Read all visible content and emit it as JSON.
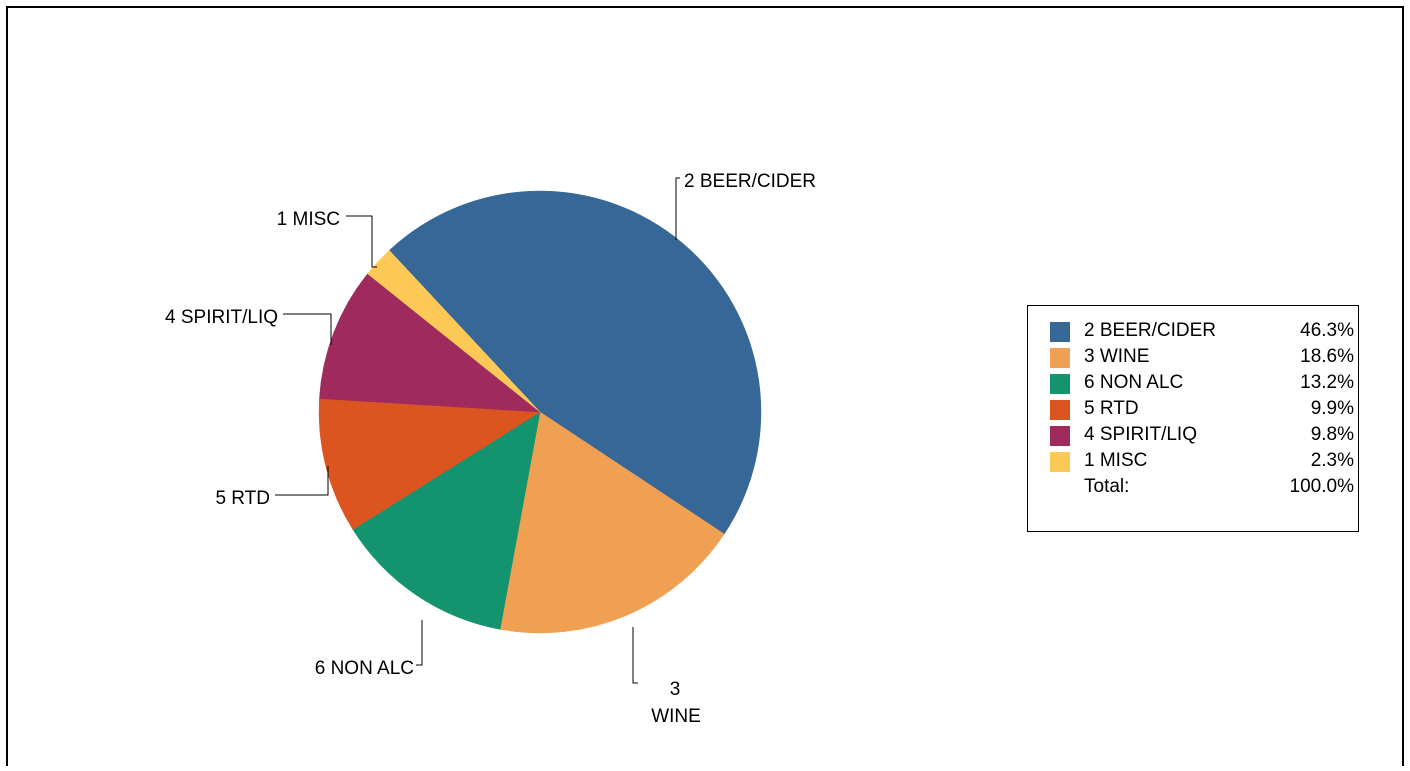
{
  "chart_data": {
    "type": "pie",
    "start_angle_deg": 227,
    "direction": "clockwise",
    "slices": [
      {
        "name": "2 BEER/CIDER",
        "value": 46.3,
        "percent_label": "46.3%",
        "color": "#366797",
        "outside_label": [
          "2 BEER/CIDER"
        ]
      },
      {
        "name": "3 WINE",
        "value": 18.6,
        "percent_label": "18.6%",
        "color": "#F0A052",
        "outside_label": [
          "3",
          "WINE"
        ]
      },
      {
        "name": "6 NON ALC",
        "value": 13.2,
        "percent_label": "13.2%",
        "color": "#13946E",
        "outside_label": [
          "6 NON ALC"
        ]
      },
      {
        "name": "5 RTD",
        "value": 9.9,
        "percent_label": "9.9%",
        "color": "#DC5420",
        "outside_label": [
          "5 RTD"
        ]
      },
      {
        "name": "4 SPIRIT/LIQ",
        "value": 9.8,
        "percent_label": "9.8%",
        "color": "#9E2A5E",
        "outside_label": [
          "4 SPIRIT/LIQ"
        ]
      },
      {
        "name": "1 MISC",
        "value": 2.3,
        "percent_label": "2.3%",
        "color": "#FDC956",
        "outside_label": [
          "1 MISC"
        ]
      }
    ],
    "legend": {
      "placement": "right",
      "total_label": "Total:",
      "total_value": "100.0%"
    }
  }
}
